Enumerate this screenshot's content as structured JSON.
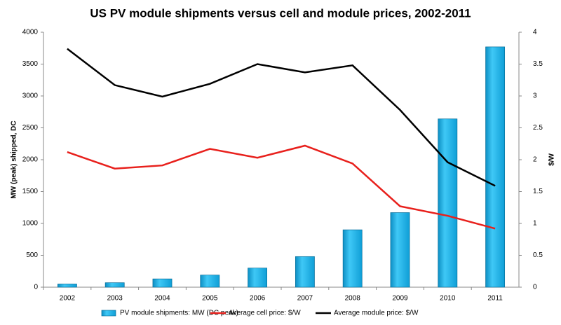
{
  "chart_data": {
    "type": "bar-line",
    "title": "US PV module shipments versus cell and module prices, 2002-2011",
    "y_label": "MW (peak) shipped, DC",
    "y2_label": "$/W",
    "categories": [
      "2002",
      "2003",
      "2004",
      "2005",
      "2006",
      "2007",
      "2008",
      "2009",
      "2010",
      "2011"
    ],
    "series": [
      {
        "name": "PV module shipments: MW (DC peak)",
        "type": "bar",
        "color": "#1fb2e6",
        "values": [
          50,
          70,
          130,
          190,
          300,
          480,
          900,
          1170,
          2640,
          3770
        ]
      },
      {
        "name": "Average cell price: $/W",
        "type": "line",
        "axis": "y2",
        "color": "#e8201c",
        "values": [
          2.12,
          1.86,
          1.91,
          2.17,
          2.03,
          2.22,
          1.94,
          1.27,
          1.12,
          0.92
        ]
      },
      {
        "name": "Average module price: $/W",
        "type": "line",
        "axis": "y2",
        "color": "#000000",
        "values": [
          3.74,
          3.17,
          2.99,
          3.19,
          3.5,
          3.37,
          3.48,
          2.78,
          1.96,
          1.59
        ]
      }
    ],
    "ylim": [
      0,
      4000
    ],
    "yticks": [
      0,
      500,
      1000,
      1500,
      2000,
      2500,
      3000,
      3500,
      4000
    ],
    "y2lim": [
      0,
      4
    ],
    "y2ticks": [
      0,
      0.5,
      1,
      1.5,
      2,
      2.5,
      3,
      3.5,
      4
    ],
    "grid": false,
    "legend": "bottom"
  }
}
